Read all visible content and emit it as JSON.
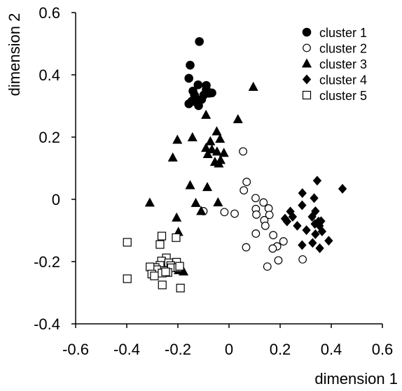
{
  "chart_data": {
    "type": "scatter",
    "xlabel": "dimension 1",
    "ylabel": "dimension 2",
    "xlim": [
      -0.6,
      0.6
    ],
    "ylim": [
      -0.4,
      0.6
    ],
    "xticks": [
      "-0.6",
      "-0.4",
      "-0.2",
      "0",
      "0.2",
      "0.4",
      "0.6"
    ],
    "yticks": [
      "-0.4",
      "-0.2",
      "0",
      "0.2",
      "0.4",
      "0.6"
    ],
    "legend_position": "top-right",
    "series": [
      {
        "name": "cluster 1",
        "marker": "filled-circle",
        "points": [
          [
            -0.116,
            0.507
          ],
          [
            -0.152,
            0.431
          ],
          [
            -0.157,
            0.389
          ],
          [
            -0.089,
            0.366
          ],
          [
            -0.121,
            0.368
          ],
          [
            -0.141,
            0.348
          ],
          [
            -0.135,
            0.335
          ],
          [
            -0.099,
            0.335
          ],
          [
            -0.078,
            0.341
          ],
          [
            -0.107,
            0.321
          ],
          [
            -0.146,
            0.315
          ],
          [
            -0.157,
            0.307
          ],
          [
            -0.13,
            0.313
          ],
          [
            -0.119,
            0.301
          ],
          [
            -0.089,
            0.353
          ],
          [
            -0.067,
            0.342
          ]
        ]
      },
      {
        "name": "cluster 2",
        "marker": "open-circle",
        "points": [
          [
            0.055,
            0.154
          ],
          [
            0.069,
            0.056
          ],
          [
            0.058,
            0.029
          ],
          [
            0.104,
            0.004
          ],
          [
            0.135,
            -0.01
          ],
          [
            0.155,
            -0.029
          ],
          [
            0.105,
            -0.031
          ],
          [
            0.158,
            -0.05
          ],
          [
            -0.018,
            -0.041
          ],
          [
            0.022,
            -0.046
          ],
          [
            0.107,
            -0.049
          ],
          [
            0.138,
            -0.067
          ],
          [
            0.142,
            -0.085
          ],
          [
            0.105,
            -0.11
          ],
          [
            0.173,
            -0.115
          ],
          [
            0.213,
            -0.135
          ],
          [
            0.188,
            -0.151
          ],
          [
            0.171,
            -0.158
          ],
          [
            0.067,
            -0.154
          ],
          [
            0.193,
            -0.196
          ],
          [
            0.15,
            -0.216
          ],
          [
            0.288,
            -0.193
          ],
          [
            -0.1,
            -0.038
          ]
        ]
      },
      {
        "name": "cluster 3",
        "marker": "filled-triangle",
        "points": [
          [
            0.095,
            0.361
          ],
          [
            -0.09,
            0.271
          ],
          [
            0.035,
            0.257
          ],
          [
            -0.202,
            0.191
          ],
          [
            -0.143,
            0.199
          ],
          [
            -0.073,
            0.186
          ],
          [
            -0.048,
            0.218
          ],
          [
            -0.035,
            0.194
          ],
          [
            -0.09,
            0.165
          ],
          [
            -0.067,
            0.16
          ],
          [
            -0.047,
            0.153
          ],
          [
            -0.083,
            0.145
          ],
          [
            -0.055,
            0.12
          ],
          [
            -0.033,
            0.126
          ],
          [
            -0.04,
            0.115
          ],
          [
            -0.22,
            0.134
          ],
          [
            -0.02,
            0.149
          ],
          [
            -0.152,
            0.045
          ],
          [
            -0.085,
            0.039
          ],
          [
            -0.31,
            -0.011
          ],
          [
            -0.13,
            -0.012
          ],
          [
            -0.043,
            -0.01
          ],
          [
            -0.109,
            -0.038
          ],
          [
            -0.205,
            -0.059
          ],
          [
            -0.198,
            -0.105
          ],
          [
            -0.197,
            -0.228
          ],
          [
            -0.178,
            -0.232
          ]
        ]
      },
      {
        "name": "cluster 4",
        "marker": "filled-diamond",
        "points": [
          [
            0.345,
            0.06
          ],
          [
            0.444,
            0.034
          ],
          [
            0.287,
            0.02
          ],
          [
            0.333,
            0.004
          ],
          [
            0.286,
            -0.019
          ],
          [
            0.24,
            -0.039
          ],
          [
            0.338,
            -0.038
          ],
          [
            0.249,
            -0.056
          ],
          [
            0.325,
            -0.056
          ],
          [
            0.227,
            -0.071
          ],
          [
            0.219,
            -0.062
          ],
          [
            0.35,
            -0.071
          ],
          [
            0.354,
            -0.085
          ],
          [
            0.336,
            -0.079
          ],
          [
            0.267,
            -0.085
          ],
          [
            0.364,
            -0.103
          ],
          [
            0.303,
            -0.099
          ],
          [
            0.338,
            -0.112
          ],
          [
            0.286,
            -0.147
          ],
          [
            0.39,
            -0.133
          ],
          [
            0.327,
            -0.14
          ],
          [
            0.355,
            -0.157
          ],
          [
            0.36,
            -0.07
          ]
        ]
      },
      {
        "name": "cluster 5",
        "marker": "open-square",
        "points": [
          [
            -0.398,
            -0.138
          ],
          [
            -0.263,
            -0.118
          ],
          [
            -0.27,
            -0.145
          ],
          [
            -0.207,
            -0.123
          ],
          [
            -0.245,
            -0.188
          ],
          [
            -0.264,
            -0.198
          ],
          [
            -0.236,
            -0.204
          ],
          [
            -0.205,
            -0.202
          ],
          [
            -0.228,
            -0.213
          ],
          [
            -0.27,
            -0.212
          ],
          [
            -0.289,
            -0.219
          ],
          [
            -0.254,
            -0.229
          ],
          [
            -0.225,
            -0.22
          ],
          [
            -0.2,
            -0.219
          ],
          [
            -0.283,
            -0.226
          ],
          [
            -0.309,
            -0.217
          ],
          [
            -0.239,
            -0.235
          ],
          [
            -0.262,
            -0.237
          ],
          [
            -0.302,
            -0.24
          ],
          [
            -0.292,
            -0.246
          ],
          [
            -0.193,
            -0.215
          ],
          [
            -0.398,
            -0.255
          ],
          [
            -0.261,
            -0.275
          ],
          [
            -0.19,
            -0.285
          ],
          [
            -0.248,
            -0.233
          ]
        ]
      }
    ]
  }
}
